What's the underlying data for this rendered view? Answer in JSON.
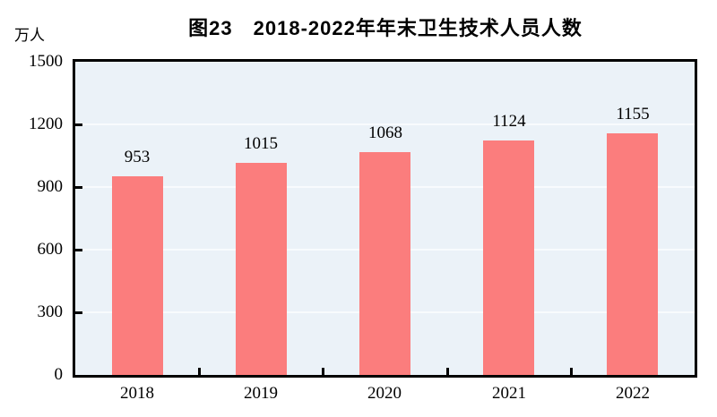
{
  "chart_data": {
    "type": "bar",
    "title": "图23　2018-2022年年末卫生技术人员人数",
    "unit_label": "万人",
    "categories": [
      "2018",
      "2019",
      "2020",
      "2021",
      "2022"
    ],
    "values": [
      953,
      1015,
      1068,
      1124,
      1155
    ],
    "ylim": [
      0,
      1500
    ],
    "yticks": [
      0,
      300,
      600,
      900,
      1200,
      1500
    ],
    "grid": true,
    "legend": "none",
    "colors": {
      "bar": "#fb7d7d",
      "plot_background": "#ebf2f8",
      "gridline": "#f8fbfd",
      "axis": "#000000",
      "text": "#000000"
    }
  }
}
